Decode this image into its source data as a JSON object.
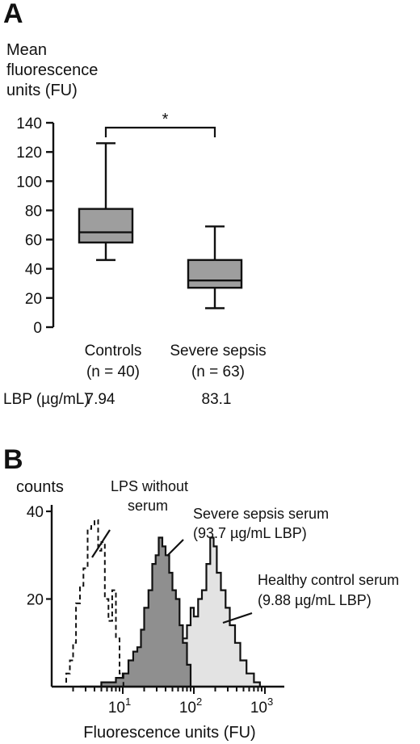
{
  "panels": [
    {
      "letter": "A",
      "chart_data": {
        "type": "box",
        "ylabel_lines": [
          "Mean",
          "fluorescence",
          "units (FU)"
        ],
        "ylim": [
          0,
          140
        ],
        "yticks": [
          0,
          20,
          40,
          60,
          80,
          100,
          120,
          140
        ],
        "categories": [
          "Controls",
          "Severe sepsis"
        ],
        "n_labels": [
          "(n = 40)",
          "(n = 63)"
        ],
        "boxes": [
          {
            "whisker_low": 46,
            "q1": 58,
            "median": 65,
            "q3": 81,
            "whisker_high": 126
          },
          {
            "whisker_low": 13,
            "q1": 27,
            "median": 32,
            "q3": 46,
            "whisker_high": 69
          }
        ],
        "significance": "*",
        "box_color": "#9e9e9e",
        "lbp": {
          "label": "LBP (µg/mL)",
          "values": [
            "7.94",
            "83.1"
          ]
        }
      }
    },
    {
      "letter": "B",
      "chart_data": {
        "type": "histogram",
        "ylabel": "counts",
        "xlabel": "Fluorescence units (FU)",
        "x_scale": "log",
        "xlim": [
          1,
          1000
        ],
        "ylim": [
          0,
          40
        ],
        "yticks": [
          20,
          40
        ],
        "xtick_labels": [
          {
            "value": 10,
            "base": "10",
            "exp": "1"
          },
          {
            "value": 100,
            "base": "10",
            "exp": "2"
          },
          {
            "value": 1000,
            "base": "10",
            "exp": "3"
          }
        ],
        "series": [
          {
            "name": "LPS without serum",
            "style": "dashed",
            "fill": "none",
            "x": [
              1.4,
              1.6,
              1.8,
              2.0,
              2.2,
              2.5,
              2.8,
              3.2,
              3.6,
              4.0,
              4.5,
              5.0,
              5.6,
              6.3,
              7.1,
              8.0,
              9.0,
              10.2
            ],
            "y": [
              0,
              3,
              6,
              10,
              19,
              23,
              27,
              36,
              37,
              38,
              31,
              33,
              20,
              15,
              22,
              11,
              3,
              0
            ]
          },
          {
            "name": "Severe sepsis serum (93.7 µg/mL LBP)",
            "style": "solid",
            "fill": "#8f8f8f",
            "x": [
              2.5,
              5,
              8,
              10,
              12,
              14,
              16,
              18,
              20,
              23,
              26,
              29,
              32,
              36,
              40,
              45,
              50,
              56,
              63,
              70,
              80,
              90
            ],
            "y": [
              0,
              1,
              2,
              3,
              6,
              8,
              9,
              13,
              18,
              22,
              28,
              30,
              34,
              32,
              30,
              26,
              22,
              20,
              14,
              10,
              5,
              0
            ]
          },
          {
            "name": "Healthy control serum (9.88 µg/mL LBP)",
            "style": "solid",
            "fill": "#e3e3e3",
            "x": [
              2.5,
              5,
              10,
              15,
              25,
              40,
              50,
              60,
              70,
              80,
              90,
              100,
              115,
              130,
              150,
              170,
              190,
              210,
              240,
              280,
              320,
              380,
              450,
              550,
              700,
              850
            ],
            "y": [
              0,
              1,
              1,
              2,
              2,
              3,
              5,
              8,
              11,
              14,
              18,
              16,
              20,
              22,
              28,
              34,
              32,
              26,
              22,
              18,
              14,
              10,
              6,
              3,
              1,
              0
            ]
          }
        ],
        "annotations": [
          {
            "lines": [
              "LPS without",
              "serum"
            ]
          },
          {
            "lines": [
              "Severe sepsis serum",
              "(93.7 µg/mL LBP)"
            ]
          },
          {
            "lines": [
              "Healthy control serum",
              "(9.88 µg/mL LBP)"
            ]
          }
        ]
      }
    }
  ]
}
